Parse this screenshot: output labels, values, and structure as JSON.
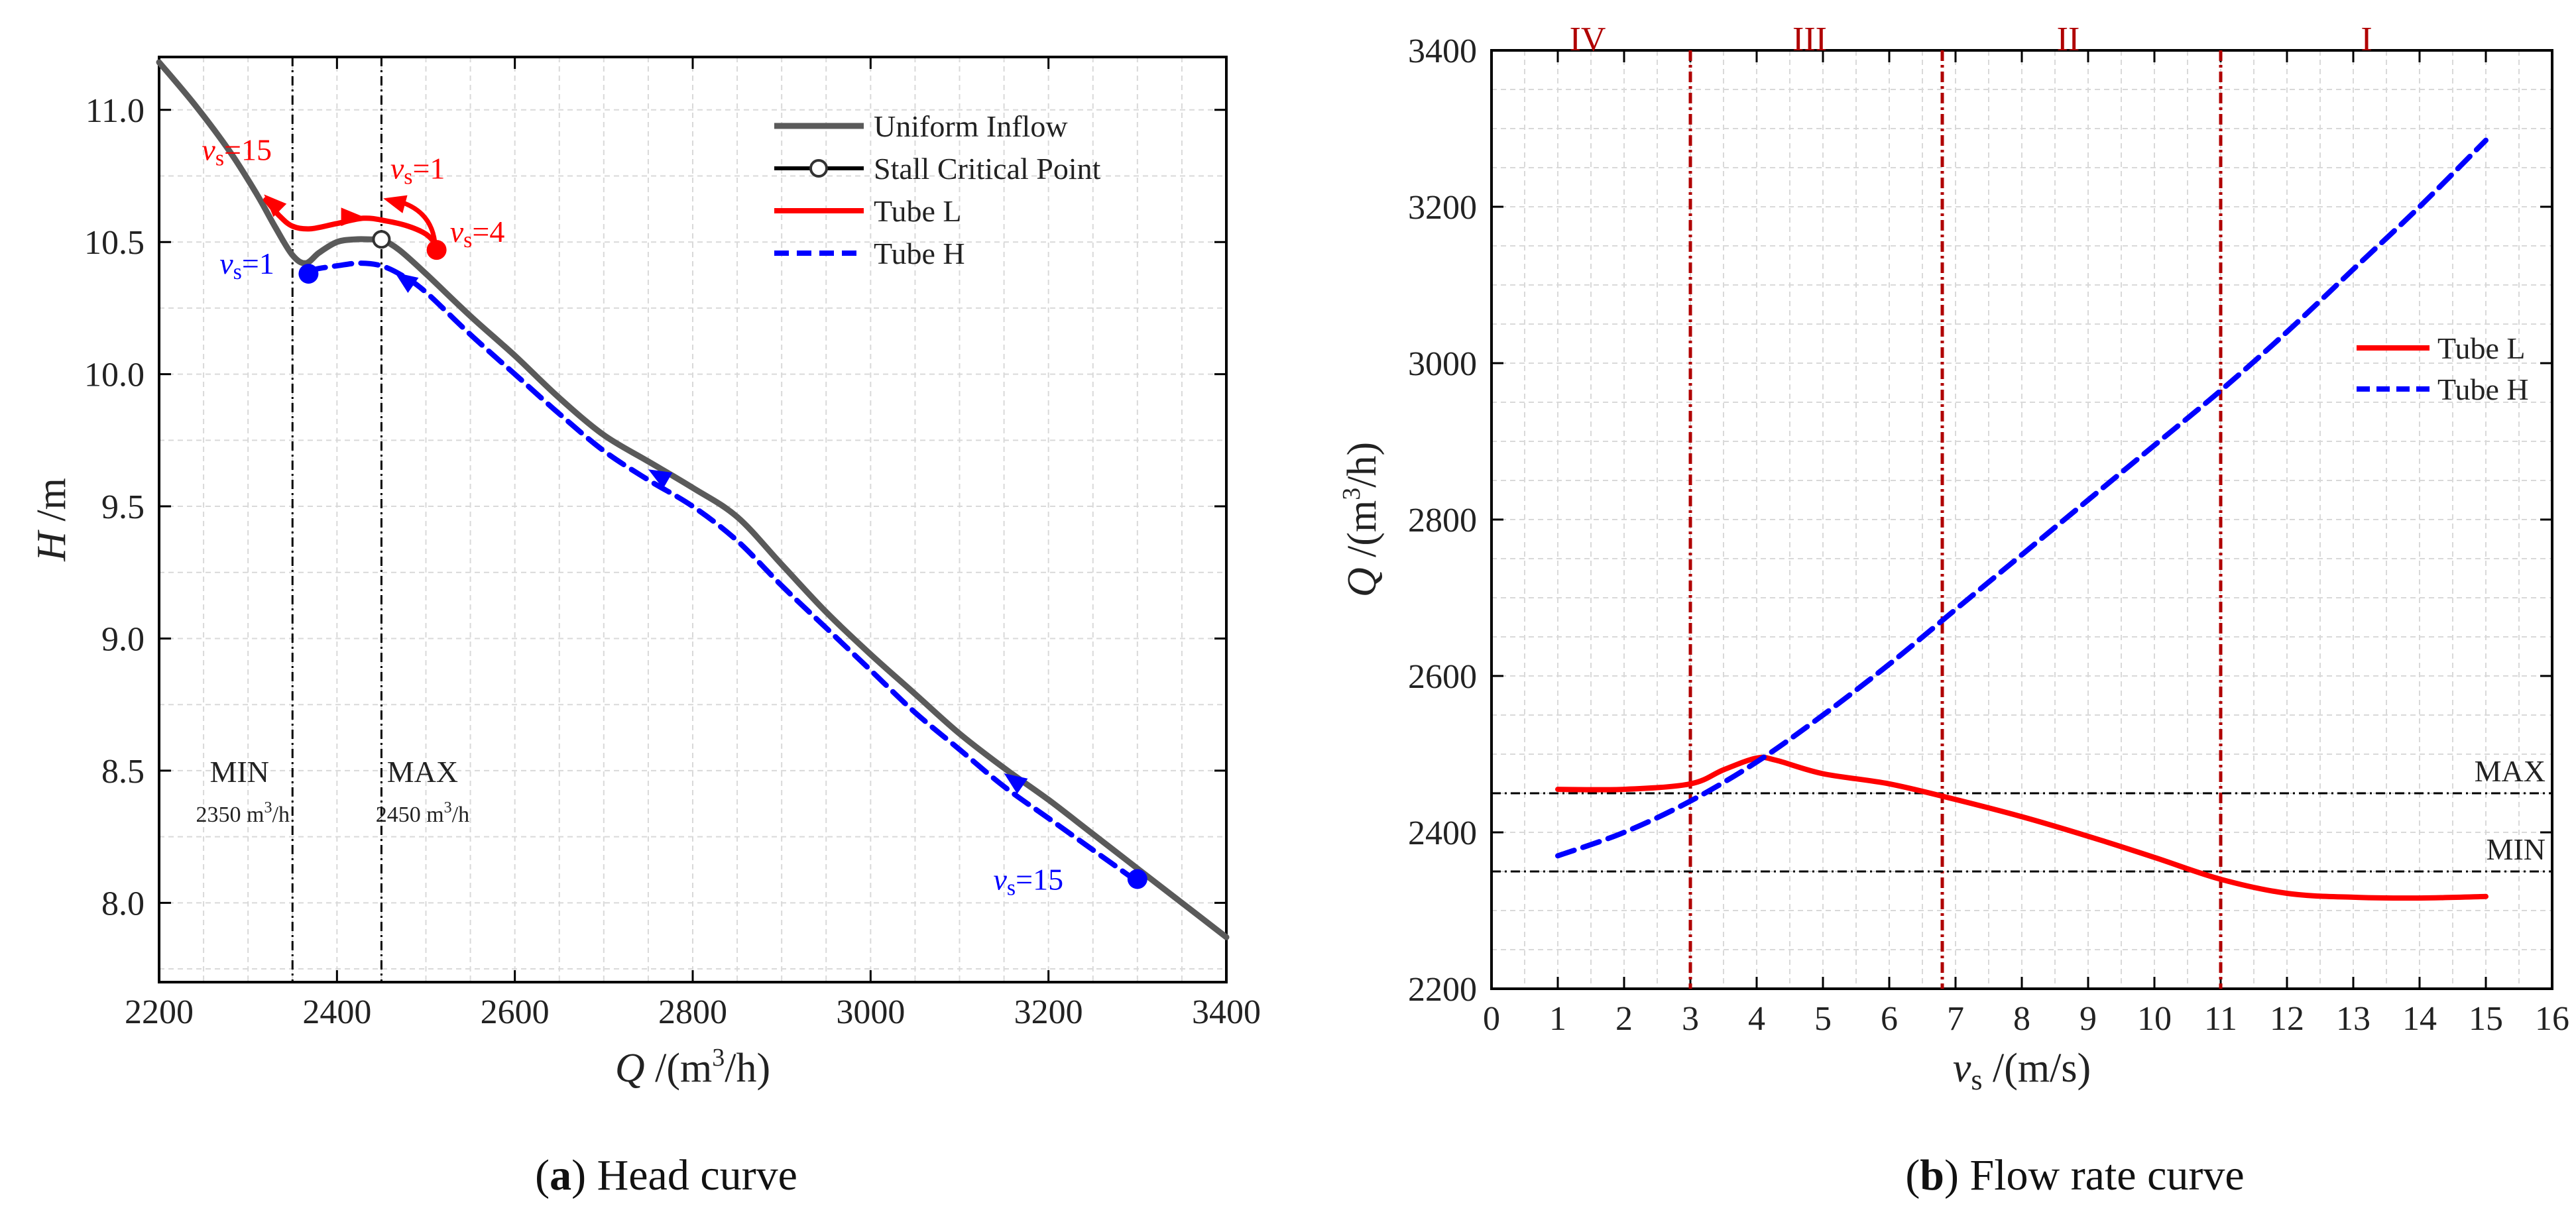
{
  "colors": {
    "uniform": "#5a5a5a",
    "tube_l": "#ff0000",
    "tube_h": "#0000ff",
    "region": "#b00000",
    "grid": "#d9d9d9",
    "refline": "#000000"
  },
  "chart_data": [
    {
      "type": "line",
      "caption": {
        "letter": "a",
        "text": "Head curve"
      },
      "xlabel": {
        "var": "Q",
        "unit": "/(m",
        "sup": "3",
        "unit_end": "/h)"
      },
      "ylabel": {
        "var": "H",
        "unit": "/m"
      },
      "xlim": [
        2200,
        3400
      ],
      "ylim": [
        7.7,
        11.2
      ],
      "xticks": [
        "2200",
        "2400",
        "2600",
        "2800",
        "3000",
        "3200",
        "3400"
      ],
      "yticks": [
        "8.0",
        "8.5",
        "9.0",
        "9.5",
        "10.0",
        "10.5",
        "11.0"
      ],
      "legend": {
        "position": "top-right",
        "entries": [
          "Uniform Inflow",
          "Stall Critical Point",
          "Tube L",
          "Tube H"
        ]
      },
      "series": [
        {
          "name": "Uniform Inflow",
          "x": [
            2200,
            2240,
            2280,
            2310,
            2330,
            2350,
            2365,
            2380,
            2400,
            2420,
            2440,
            2450,
            2470,
            2500,
            2550,
            2600,
            2650,
            2700,
            2750,
            2800,
            2850,
            2900,
            2950,
            3000,
            3050,
            3100,
            3150,
            3200,
            3250,
            3300,
            3350,
            3400
          ],
          "y": [
            11.18,
            11.02,
            10.84,
            10.68,
            10.56,
            10.45,
            10.42,
            10.46,
            10.5,
            10.51,
            10.51,
            10.51,
            10.47,
            10.38,
            10.22,
            10.07,
            9.91,
            9.77,
            9.67,
            9.57,
            9.46,
            9.28,
            9.1,
            8.94,
            8.79,
            8.64,
            8.51,
            8.39,
            8.26,
            8.13,
            8.0,
            7.87
          ]
        },
        {
          "name": "Tube L",
          "x": [
            2320,
            2335,
            2350,
            2370,
            2400,
            2430,
            2455,
            2480,
            2500,
            2512
          ],
          "y": [
            10.66,
            10.6,
            10.56,
            10.55,
            10.57,
            10.59,
            10.58,
            10.56,
            10.53,
            10.49
          ]
        },
        {
          "name": "Tube H",
          "x": [
            2368,
            2380,
            2400,
            2425,
            2450,
            2475,
            2500,
            2550,
            2600,
            2650,
            2700,
            2750,
            2800,
            2850,
            2900,
            2950,
            3000,
            3050,
            3100,
            3150,
            3200,
            3250,
            3300
          ],
          "y": [
            10.39,
            10.4,
            10.41,
            10.42,
            10.41,
            10.37,
            10.31,
            10.15,
            10.0,
            9.85,
            9.71,
            9.6,
            9.5,
            9.37,
            9.2,
            9.04,
            8.88,
            8.72,
            8.58,
            8.44,
            8.32,
            8.2,
            8.08
          ]
        }
      ],
      "stall_critical_point": {
        "x": 2450,
        "y": 10.51
      },
      "reference_lines": [
        {
          "label": "MIN",
          "sub": "2350 m",
          "sub_sup": "3",
          "sub_end": "/h",
          "x": 2350
        },
        {
          "label": "MAX",
          "sub": "2450 m",
          "sub_sup": "3",
          "sub_end": "/h",
          "x": 2450
        }
      ],
      "annotations": [
        {
          "var": "v",
          "sub": "s",
          "text": "=15",
          "color": "red"
        },
        {
          "var": "v",
          "sub": "s",
          "text": "=1",
          "color": "red"
        },
        {
          "var": "v",
          "sub": "s",
          "text": "=4",
          "color": "red"
        },
        {
          "var": "v",
          "sub": "s",
          "text": "=1",
          "color": "blue"
        },
        {
          "var": "v",
          "sub": "s",
          "text": "=15",
          "color": "blue"
        }
      ]
    },
    {
      "type": "line",
      "caption": {
        "letter": "b",
        "text": "Flow rate curve"
      },
      "xlabel": {
        "var": "v",
        "sub": "s",
        "unit": "/(m/s)"
      },
      "ylabel": {
        "var": "Q",
        "unit": "/(m",
        "sup": "3",
        "unit_end": "/h)"
      },
      "xlim": [
        0,
        16
      ],
      "ylim": [
        2200,
        3400
      ],
      "xticks": [
        "0",
        "1",
        "2",
        "3",
        "4",
        "5",
        "6",
        "7",
        "8",
        "9",
        "10",
        "11",
        "12",
        "13",
        "14",
        "15",
        "16"
      ],
      "yticks": [
        "2200",
        "2400",
        "2600",
        "2800",
        "3000",
        "3200",
        "3400"
      ],
      "legend": {
        "position": "right",
        "entries": [
          "Tube L",
          "Tube H"
        ]
      },
      "series": [
        {
          "name": "Tube L",
          "x": [
            1,
            2,
            3,
            3.5,
            4,
            4.3,
            5,
            6,
            7,
            8,
            9,
            10,
            11,
            12,
            13,
            14,
            15
          ],
          "y": [
            2455,
            2455,
            2462,
            2480,
            2495,
            2492,
            2475,
            2462,
            2442,
            2420,
            2395,
            2368,
            2340,
            2322,
            2317,
            2316,
            2318
          ]
        },
        {
          "name": "Tube H",
          "x": [
            1,
            2,
            3,
            4,
            5,
            6,
            7,
            8,
            9,
            10,
            11,
            12,
            13,
            14,
            15
          ],
          "y": [
            2370,
            2400,
            2440,
            2490,
            2550,
            2615,
            2685,
            2755,
            2825,
            2895,
            2965,
            3040,
            3120,
            3200,
            3285
          ]
        }
      ],
      "reference_lines": [
        {
          "label": "MAX",
          "y": 2450
        },
        {
          "label": "MIN",
          "y": 2350
        }
      ],
      "region_lines": [
        3,
        6.8,
        11
      ],
      "regions": [
        {
          "label": "IV",
          "x": 1.45
        },
        {
          "label": "III",
          "x": 4.8
        },
        {
          "label": "II",
          "x": 8.7
        },
        {
          "label": "I",
          "x": 13.2
        }
      ]
    }
  ]
}
